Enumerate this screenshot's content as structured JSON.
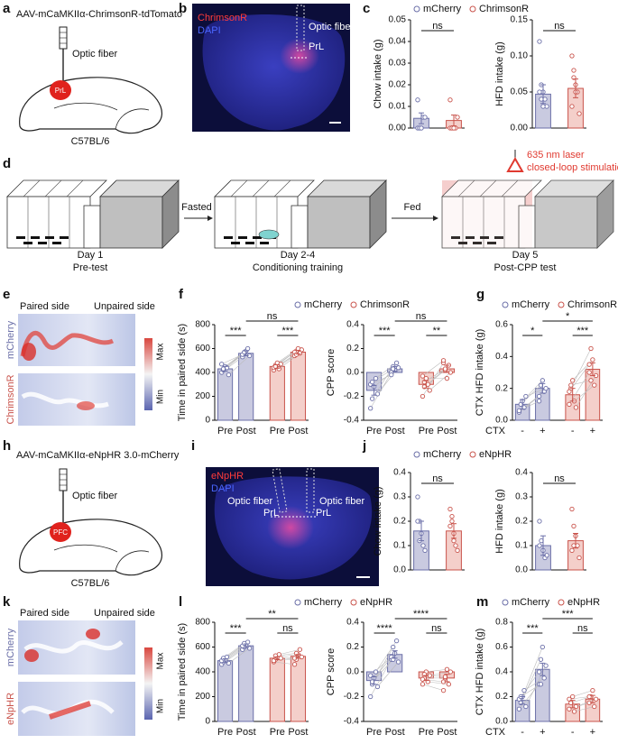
{
  "panel_labels": [
    "a",
    "b",
    "c",
    "d",
    "e",
    "f",
    "g",
    "h",
    "i",
    "j",
    "k",
    "l",
    "m"
  ],
  "panel_a": {
    "construct": "AAV-mCaMKIIα-ChrimsonR-tdTomato",
    "fiber": "Optic fiber",
    "region": "PrL",
    "strain": "C57BL/6"
  },
  "panel_b": {
    "stain1": "ChrimsonR",
    "stain2": "DAPI",
    "fiber": "Optic fiber",
    "region": "PrL"
  },
  "panel_d": {
    "stages": [
      {
        "day": "Day 1",
        "name": "Pre-test"
      },
      {
        "day": "Day 2-4",
        "name": "Conditioning training"
      },
      {
        "day": "Day 5",
        "name": "Post-CPP test"
      }
    ],
    "arrows": [
      "Fasted",
      "Fed"
    ],
    "laser": "635 nm laser",
    "stimulation": "closed-loop stimulation"
  },
  "panel_e": {
    "paired": "Paired side",
    "unpaired": "Unpaired side",
    "rows": [
      "mCherry",
      "ChrimsonR"
    ],
    "max": "Max",
    "min": "Min"
  },
  "panel_h": {
    "construct": "AAV-mCaMKIIα-eNpHR 3.0-mCherry",
    "fiber": "Optic fiber",
    "region": "PFC",
    "strain": "C57BL/6"
  },
  "panel_i": {
    "stain1": "eNpHR",
    "stain2": "DAPI",
    "fibers": [
      "Optic fiber",
      "Optic fiber"
    ],
    "regions": [
      "PrL",
      "PrL"
    ]
  },
  "panel_k": {
    "paired": "Paired side",
    "unpaired": "Unpaired side",
    "rows": [
      "mCherry",
      "eNpHR"
    ],
    "max": "Max",
    "min": "Min"
  },
  "chart_data": [
    {
      "type": "bar",
      "ylabel": "Chow intake (g)",
      "legend": true,
      "categories": [
        null
      ],
      "ylim": [
        0,
        0.05
      ],
      "yticks": [
        {
          "value": 0,
          "label": "0.00"
        },
        0.01,
        0.02,
        0.03,
        0.04,
        0.05
      ],
      "series": [
        {
          "name": "mCherry",
          "color": "#6b6fa8",
          "fill": "#c9cae0",
          "values": [
            0.0045
          ],
          "errors": [
            0.0025
          ],
          "points": [
            [
              0,
              0,
              0,
              0.005,
              0.005,
              0.013,
              0,
              0
            ]
          ]
        },
        {
          "name": "ChrimsonR",
          "color": "#c9534b",
          "fill": "#f4cfca",
          "values": [
            0.0035
          ],
          "errors": [
            0.0025
          ],
          "points": [
            [
              0,
              0,
              0,
              0,
              0.005,
              0.013,
              0,
              0
            ]
          ]
        }
      ],
      "annotations": [
        "ns"
      ]
    },
    {
      "type": "bar",
      "ylabel": "HFD intake (g)",
      "categories": [
        null
      ],
      "ylim": [
        0,
        0.15
      ],
      "yticks": [
        {
          "value": 0,
          "label": "0.00"
        },
        0.05,
        {
          "value": 0.1,
          "label": "0.10"
        },
        0.15
      ],
      "series": [
        {
          "color": "#6b6fa8",
          "fill": "#c9cae0",
          "values": [
            0.047
          ],
          "errors": [
            0.013
          ],
          "points": [
            [
              0.12,
              0.06,
              0.05,
              0.04,
              0.03,
              0.05,
              0.04,
              0.03
            ]
          ]
        },
        {
          "color": "#c9534b",
          "fill": "#f4cfca",
          "values": [
            0.055
          ],
          "errors": [
            0.013
          ],
          "points": [
            [
              0.1,
              0.08,
              0.06,
              0.05,
              0.02,
              0.03,
              0.07,
              0.05
            ]
          ]
        }
      ],
      "annotations": [
        "ns"
      ]
    },
    {
      "type": "bar",
      "ylabel": "Time in paired side (s)",
      "legend": true,
      "categories": [
        "Pre",
        "Post"
      ],
      "ylim": [
        0,
        800
      ],
      "yticks": [
        0,
        200,
        400,
        600,
        800
      ],
      "series": [
        {
          "name": "mCherry",
          "color": "#6b6fa8",
          "fill": "#c9cae0",
          "values": [
            430,
            560
          ],
          "errors": [
            20,
            20
          ],
          "points": [
            [
              400,
              420,
              450,
              440,
              380,
              470,
              430
            ],
            [
              530,
              560,
              580,
              600,
              540,
              550,
              570
            ]
          ]
        },
        {
          "name": "ChrimsonR",
          "color": "#c9534b",
          "fill": "#f4cfca",
          "values": [
            450,
            570
          ],
          "errors": [
            15,
            15
          ],
          "points": [
            [
              420,
              460,
              480,
              430,
              470,
              440,
              450
            ],
            [
              540,
              580,
              600,
              560,
              590,
              570,
              550
            ]
          ]
        }
      ],
      "annotations": [
        "***",
        "ns",
        "***"
      ]
    },
    {
      "type": "bar",
      "ylabel": "CPP score",
      "categories": [
        "Pre",
        "Post"
      ],
      "ylim": [
        -0.4,
        0.4
      ],
      "yticks": [
        -0.4,
        -0.2,
        {
          "value": 0,
          "label": "0.0"
        },
        0.2,
        0.4
      ],
      "series": [
        {
          "color": "#6b6fa8",
          "fill": "#c9cae0",
          "values": [
            -0.15,
            0.03
          ],
          "errors": [
            0.04,
            0.02
          ],
          "points": [
            [
              -0.3,
              -0.22,
              -0.12,
              -0.05,
              -0.18,
              -0.1,
              -0.08
            ],
            [
              0,
              0.05,
              0.02,
              0.08,
              0.04,
              -0.02,
              0.03
            ]
          ]
        },
        {
          "color": "#c9534b",
          "fill": "#f4cfca",
          "values": [
            -0.1,
            0.03
          ],
          "errors": [
            0.03,
            0.03
          ],
          "points": [
            [
              -0.2,
              -0.12,
              -0.05,
              -0.1,
              -0.15,
              -0.03,
              -0.08
            ],
            [
              0.08,
              0.02,
              -0.05,
              0.06,
              0,
              0.1,
              0.03
            ]
          ]
        }
      ],
      "annotations": [
        "***",
        "ns",
        "**"
      ]
    },
    {
      "type": "bar",
      "ylabel": "CTX HFD intake (g)",
      "xlabel": "CTX",
      "legend": true,
      "categories": [
        "-",
        "+"
      ],
      "ylim": [
        0,
        0.6
      ],
      "yticks": [
        {
          "value": 0,
          "label": "0.0"
        },
        0.2,
        0.4,
        0.6
      ],
      "series": [
        {
          "name": "mCherry",
          "color": "#6b6fa8",
          "fill": "#c9cae0",
          "values": [
            0.1,
            0.2
          ],
          "errors": [
            0.03,
            0.03
          ],
          "points": [
            [
              0.05,
              0.1,
              0.12,
              0.08,
              0.15,
              0.06
            ],
            [
              0.15,
              0.22,
              0.25,
              0.18,
              0.2,
              0.12
            ]
          ]
        },
        {
          "name": "ChrimsonR",
          "color": "#c9534b",
          "fill": "#f4cfca",
          "values": [
            0.16,
            0.32
          ],
          "errors": [
            0.04,
            0.04
          ],
          "points": [
            [
              0.1,
              0.2,
              0.25,
              0.12,
              0.08,
              0.18,
              0.22
            ],
            [
              0.3,
              0.45,
              0.38,
              0.22,
              0.28,
              0.35,
              0.25
            ]
          ]
        }
      ],
      "annotations": [
        "*",
        "*",
        "***"
      ]
    },
    {
      "type": "bar",
      "ylabel": "Chow intake (g)",
      "legend": true,
      "categories": [
        null
      ],
      "ylim": [
        0,
        0.4
      ],
      "yticks": [
        {
          "value": 0,
          "label": "0.0"
        },
        0.1,
        0.2,
        0.3,
        0.4
      ],
      "series": [
        {
          "name": "mCherry",
          "color": "#6b6fa8",
          "fill": "#c9cae0",
          "values": [
            0.16
          ],
          "errors": [
            0.04
          ],
          "points": [
            [
              0.3,
              0.2,
              0.15,
              0.1,
              0.08,
              0.2,
              0.12
            ]
          ]
        },
        {
          "name": "eNpHR",
          "color": "#c9534b",
          "fill": "#f4cfca",
          "values": [
            0.16
          ],
          "errors": [
            0.03
          ],
          "points": [
            [
              0.25,
              0.22,
              0.15,
              0.1,
              0.08,
              0.18,
              0.2,
              0.12
            ]
          ]
        }
      ],
      "annotations": [
        "ns"
      ]
    },
    {
      "type": "bar",
      "ylabel": "HFD intake (g)",
      "categories": [
        null
      ],
      "ylim": [
        0,
        0.4
      ],
      "yticks": [
        {
          "value": 0,
          "label": "0.0"
        },
        0.1,
        0.2,
        0.3,
        0.4
      ],
      "series": [
        {
          "color": "#6b6fa8",
          "fill": "#c9cae0",
          "values": [
            0.1
          ],
          "errors": [
            0.04
          ],
          "points": [
            [
              0.2,
              0.12,
              0.08,
              0.05,
              0.06,
              0.1
            ]
          ]
        },
        {
          "color": "#c9534b",
          "fill": "#f4cfca",
          "values": [
            0.12
          ],
          "errors": [
            0.03
          ],
          "points": [
            [
              0.25,
              0.18,
              0.14,
              0.1,
              0.05,
              0.08,
              0.1
            ]
          ]
        }
      ],
      "annotations": [
        "ns"
      ]
    },
    {
      "type": "bar",
      "ylabel": "Time in paired side (s)",
      "legend": true,
      "categories": [
        "Pre",
        "Post"
      ],
      "ylim": [
        0,
        800
      ],
      "yticks": [
        0,
        200,
        400,
        600,
        800
      ],
      "series": [
        {
          "name": "mCherry",
          "color": "#6b6fa8",
          "fill": "#c9cae0",
          "values": [
            490,
            610
          ],
          "errors": [
            15,
            15
          ],
          "points": [
            [
              460,
              480,
              500,
              520,
              470,
              490,
              510
            ],
            [
              580,
              600,
              620,
              640,
              590,
              610,
              630
            ]
          ]
        },
        {
          "name": "eNpHR",
          "color": "#c9534b",
          "fill": "#f4cfca",
          "values": [
            510,
            525
          ],
          "errors": [
            12,
            15
          ],
          "points": [
            [
              480,
              500,
              520,
              540,
              510,
              490,
              530
            ],
            [
              460,
              500,
              540,
              580,
              520,
              510,
              550
            ]
          ]
        }
      ],
      "annotations": [
        "***",
        "**",
        "ns"
      ]
    },
    {
      "type": "bar",
      "ylabel": "CPP score",
      "categories": [
        "Pre",
        "Post"
      ],
      "ylim": [
        -0.4,
        0.4
      ],
      "yticks": [
        -0.4,
        -0.2,
        {
          "value": 0,
          "label": "0.0"
        },
        0.2,
        0.4
      ],
      "series": [
        {
          "color": "#6b6fa8",
          "fill": "#c9cae0",
          "values": [
            -0.07,
            0.14
          ],
          "errors": [
            0.03,
            0.03
          ],
          "points": [
            [
              -0.2,
              -0.1,
              -0.05,
              0,
              -0.12,
              -0.03,
              -0.08
            ],
            [
              0.1,
              0.2,
              0.15,
              0.25,
              0.08,
              0.12,
              0.1
            ]
          ]
        },
        {
          "color": "#c9534b",
          "fill": "#f4cfca",
          "values": [
            -0.05,
            -0.05
          ],
          "errors": [
            0.02,
            0.03
          ],
          "points": [
            [
              -0.1,
              -0.05,
              0,
              -0.08,
              -0.03,
              -0.06,
              -0.02
            ],
            [
              -0.15,
              -0.05,
              0.02,
              -0.1,
              0,
              -0.08,
              -0.04
            ]
          ]
        }
      ],
      "annotations": [
        "****",
        "****",
        "ns"
      ]
    },
    {
      "type": "bar",
      "ylabel": "CTX HFD intake (g)",
      "xlabel": "CTX",
      "legend": true,
      "categories": [
        "-",
        "+"
      ],
      "ylim": [
        0,
        0.8
      ],
      "yticks": [
        {
          "value": 0,
          "label": "0.0"
        },
        0.2,
        0.4,
        0.6,
        0.8
      ],
      "series": [
        {
          "name": "mCherry",
          "color": "#6b6fa8",
          "fill": "#c9cae0",
          "values": [
            0.17,
            0.42
          ],
          "errors": [
            0.03,
            0.05
          ],
          "points": [
            [
              0.1,
              0.15,
              0.2,
              0.25,
              0.12,
              0.18,
              0.2
            ],
            [
              0.3,
              0.5,
              0.6,
              0.35,
              0.45,
              0.4,
              0.3
            ]
          ]
        },
        {
          "name": "eNpHR",
          "color": "#c9534b",
          "fill": "#f4cfca",
          "values": [
            0.14,
            0.18
          ],
          "errors": [
            0.03,
            0.03
          ],
          "points": [
            [
              0.1,
              0.15,
              0.2,
              0.08,
              0.12,
              0.18
            ],
            [
              0.15,
              0.2,
              0.25,
              0.12,
              0.18,
              0.2
            ]
          ]
        }
      ],
      "annotations": [
        "***",
        "***",
        "ns"
      ]
    }
  ]
}
